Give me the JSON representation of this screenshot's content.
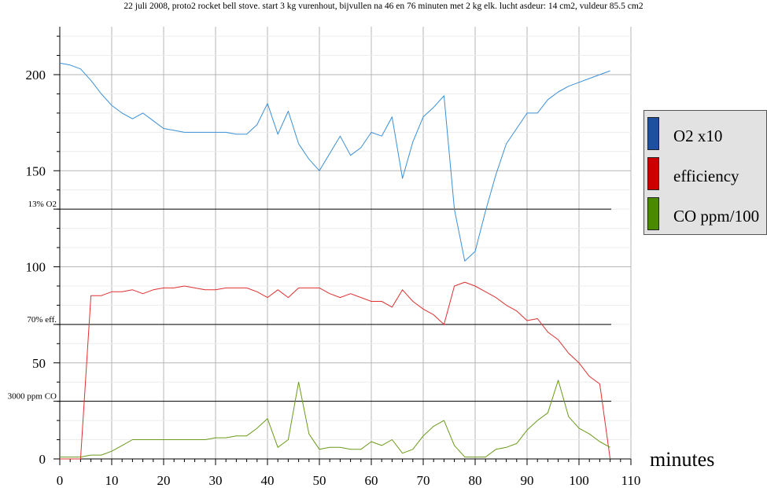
{
  "chart_data": {
    "type": "line",
    "title": "22 juli 2008, proto2 rocket bell stove. start 3 kg vurenhout, bijvullen na 46 en 76 minuten met 2 kg elk. lucht asdeur: 14 cm2, vuldeur 85.5 cm2",
    "xlabel": "minutes",
    "ylabel": "",
    "xlim": [
      0,
      110
    ],
    "ylim": [
      0,
      225
    ],
    "x_ticks": [
      0,
      10,
      20,
      30,
      40,
      50,
      60,
      70,
      80,
      90,
      100,
      110
    ],
    "y_ticks": [
      0,
      50,
      100,
      150,
      200
    ],
    "grid": true,
    "legend_position": "right",
    "reference_lines": [
      {
        "label": "13% O2",
        "y": 130
      },
      {
        "label": "70% eff.",
        "y": 70
      },
      {
        "label": "3000 ppm CO",
        "y": 30
      }
    ],
    "series": [
      {
        "name": "O2 x10",
        "color": "#3b8fd6",
        "points": [
          [
            0,
            206
          ],
          [
            2,
            205
          ],
          [
            4,
            203
          ],
          [
            6,
            197
          ],
          [
            8,
            190
          ],
          [
            10,
            184
          ],
          [
            12,
            180
          ],
          [
            14,
            177
          ],
          [
            16,
            180
          ],
          [
            18,
            176
          ],
          [
            20,
            172
          ],
          [
            22,
            171
          ],
          [
            24,
            170
          ],
          [
            26,
            170
          ],
          [
            28,
            170
          ],
          [
            30,
            170
          ],
          [
            32,
            170
          ],
          [
            34,
            169
          ],
          [
            36,
            169
          ],
          [
            38,
            174
          ],
          [
            40,
            185
          ],
          [
            42,
            169
          ],
          [
            44,
            181
          ],
          [
            46,
            164
          ],
          [
            48,
            156
          ],
          [
            50,
            150
          ],
          [
            52,
            159
          ],
          [
            54,
            168
          ],
          [
            56,
            158
          ],
          [
            58,
            162
          ],
          [
            60,
            170
          ],
          [
            62,
            168
          ],
          [
            64,
            178
          ],
          [
            66,
            146
          ],
          [
            68,
            165
          ],
          [
            70,
            178
          ],
          [
            72,
            183
          ],
          [
            74,
            189
          ],
          [
            76,
            130
          ],
          [
            78,
            103
          ],
          [
            80,
            108
          ],
          [
            82,
            129
          ],
          [
            84,
            148
          ],
          [
            86,
            164
          ],
          [
            88,
            172
          ],
          [
            90,
            180
          ],
          [
            92,
            180
          ],
          [
            94,
            187
          ],
          [
            96,
            191
          ],
          [
            98,
            194
          ],
          [
            100,
            196
          ],
          [
            102,
            198
          ],
          [
            104,
            200
          ],
          [
            106,
            202
          ]
        ]
      },
      {
        "name": "efficiency",
        "color": "#e03030",
        "points": [
          [
            0,
            0
          ],
          [
            2,
            0
          ],
          [
            4,
            0
          ],
          [
            6,
            85
          ],
          [
            8,
            85
          ],
          [
            10,
            87
          ],
          [
            12,
            87
          ],
          [
            14,
            88
          ],
          [
            16,
            86
          ],
          [
            18,
            88
          ],
          [
            20,
            89
          ],
          [
            22,
            89
          ],
          [
            24,
            90
          ],
          [
            26,
            89
          ],
          [
            28,
            88
          ],
          [
            30,
            88
          ],
          [
            32,
            89
          ],
          [
            34,
            89
          ],
          [
            36,
            89
          ],
          [
            38,
            87
          ],
          [
            40,
            84
          ],
          [
            42,
            88
          ],
          [
            44,
            84
          ],
          [
            46,
            89
          ],
          [
            48,
            89
          ],
          [
            50,
            89
          ],
          [
            52,
            86
          ],
          [
            54,
            84
          ],
          [
            56,
            86
          ],
          [
            58,
            84
          ],
          [
            60,
            82
          ],
          [
            62,
            82
          ],
          [
            64,
            79
          ],
          [
            66,
            88
          ],
          [
            68,
            82
          ],
          [
            70,
            78
          ],
          [
            72,
            75
          ],
          [
            74,
            70
          ],
          [
            76,
            90
          ],
          [
            78,
            92
          ],
          [
            80,
            90
          ],
          [
            82,
            87
          ],
          [
            84,
            84
          ],
          [
            86,
            80
          ],
          [
            88,
            77
          ],
          [
            90,
            72
          ],
          [
            92,
            73
          ],
          [
            94,
            66
          ],
          [
            96,
            62
          ],
          [
            98,
            55
          ],
          [
            100,
            50
          ],
          [
            102,
            43
          ],
          [
            104,
            39
          ],
          [
            106,
            0
          ]
        ]
      },
      {
        "name": "CO ppm/100",
        "color": "#6a9a1a",
        "points": [
          [
            0,
            1
          ],
          [
            2,
            1
          ],
          [
            4,
            1
          ],
          [
            6,
            2
          ],
          [
            8,
            2
          ],
          [
            10,
            4
          ],
          [
            12,
            7
          ],
          [
            14,
            10
          ],
          [
            16,
            10
          ],
          [
            18,
            10
          ],
          [
            20,
            10
          ],
          [
            22,
            10
          ],
          [
            24,
            10
          ],
          [
            26,
            10
          ],
          [
            28,
            10
          ],
          [
            30,
            11
          ],
          [
            32,
            11
          ],
          [
            34,
            12
          ],
          [
            36,
            12
          ],
          [
            38,
            16
          ],
          [
            40,
            21
          ],
          [
            42,
            6
          ],
          [
            44,
            10
          ],
          [
            46,
            40
          ],
          [
            48,
            13
          ],
          [
            50,
            5
          ],
          [
            52,
            6
          ],
          [
            54,
            6
          ],
          [
            56,
            5
          ],
          [
            58,
            5
          ],
          [
            60,
            9
          ],
          [
            62,
            7
          ],
          [
            64,
            10
          ],
          [
            66,
            3
          ],
          [
            68,
            5
          ],
          [
            70,
            12
          ],
          [
            72,
            17
          ],
          [
            74,
            20
          ],
          [
            76,
            7
          ],
          [
            78,
            1
          ],
          [
            80,
            1
          ],
          [
            82,
            1
          ],
          [
            84,
            5
          ],
          [
            86,
            6
          ],
          [
            88,
            8
          ],
          [
            90,
            15
          ],
          [
            92,
            20
          ],
          [
            94,
            24
          ],
          [
            96,
            41
          ],
          [
            98,
            22
          ],
          [
            100,
            16
          ],
          [
            102,
            13
          ],
          [
            104,
            9
          ],
          [
            106,
            6
          ]
        ]
      }
    ]
  }
}
